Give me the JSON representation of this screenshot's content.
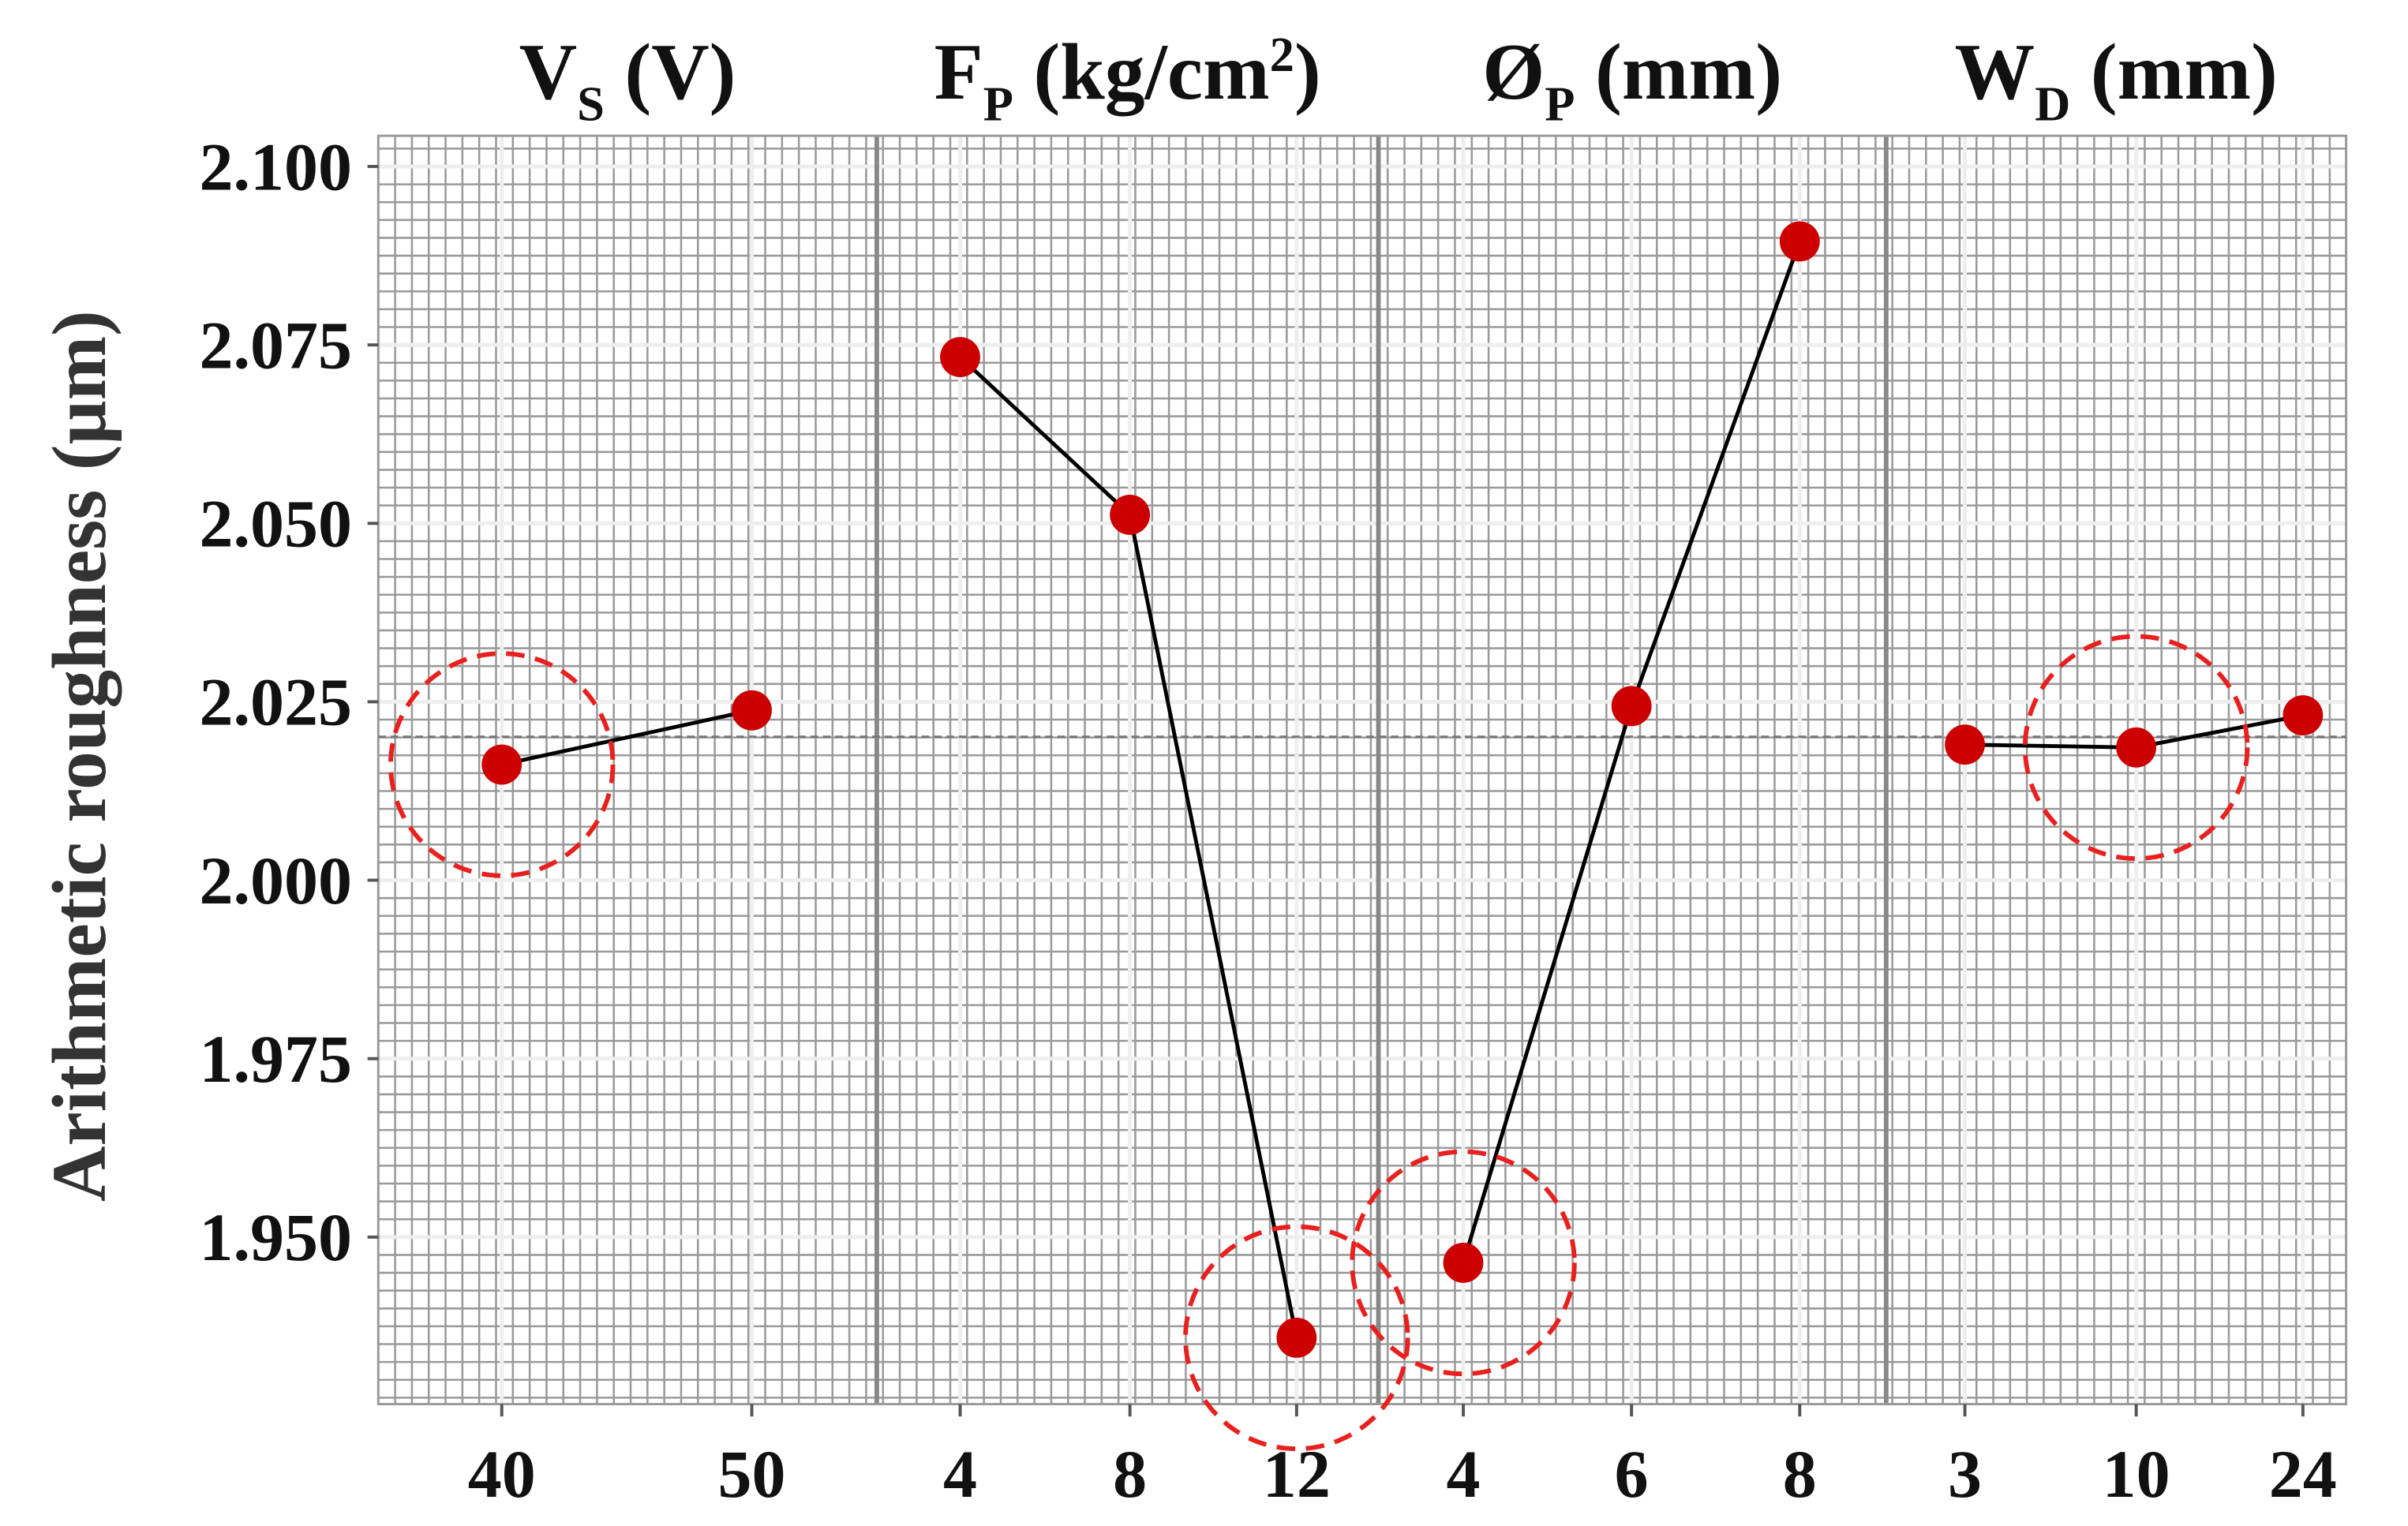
{
  "chart_data": {
    "type": "line",
    "ylabel": "Arithmetic roughness (µm)",
    "ylim": [
      1.9266,
      2.1043
    ],
    "yticks": [
      1.95,
      1.975,
      2.0,
      2.025,
      2.05,
      2.075,
      2.1
    ],
    "ytick_labels": [
      "1.950",
      "1.975",
      "2.000",
      "2.025",
      "2.050",
      "2.075",
      "2.100"
    ],
    "grid": true,
    "mean_line": 2.0201,
    "colors": {
      "marker": "#cc0000",
      "line": "#000000",
      "highlight": "#e8201e",
      "grid": "#9a9a9a"
    },
    "panels": [
      {
        "symbol": "V",
        "subscript": "S",
        "unit": " (V)",
        "superscript": "",
        "unit_end": "",
        "x": [
          "40",
          "50"
        ],
        "values": [
          2.0162,
          2.0238
        ],
        "highlight_index": 0
      },
      {
        "symbol": "F",
        "subscript": "P",
        "unit": " (kg/cm",
        "superscript": "2",
        "unit_end": ")",
        "x": [
          "4",
          "8",
          "12"
        ],
        "values": [
          2.0733,
          2.0512,
          1.9359
        ],
        "highlight_index": 2
      },
      {
        "symbol": "Ø",
        "subscript": "P",
        "unit": " (mm)",
        "superscript": "",
        "unit_end": "",
        "x": [
          "4",
          "6",
          "8"
        ],
        "values": [
          1.9464,
          2.0244,
          2.0895
        ],
        "highlight_index": 0
      },
      {
        "symbol": "W",
        "subscript": "D",
        "unit": " (mm)",
        "superscript": "",
        "unit_end": "",
        "x": [
          "3",
          "10",
          "24"
        ],
        "values": [
          2.019,
          2.0186,
          2.0231
        ],
        "highlight_index": 1
      }
    ]
  }
}
